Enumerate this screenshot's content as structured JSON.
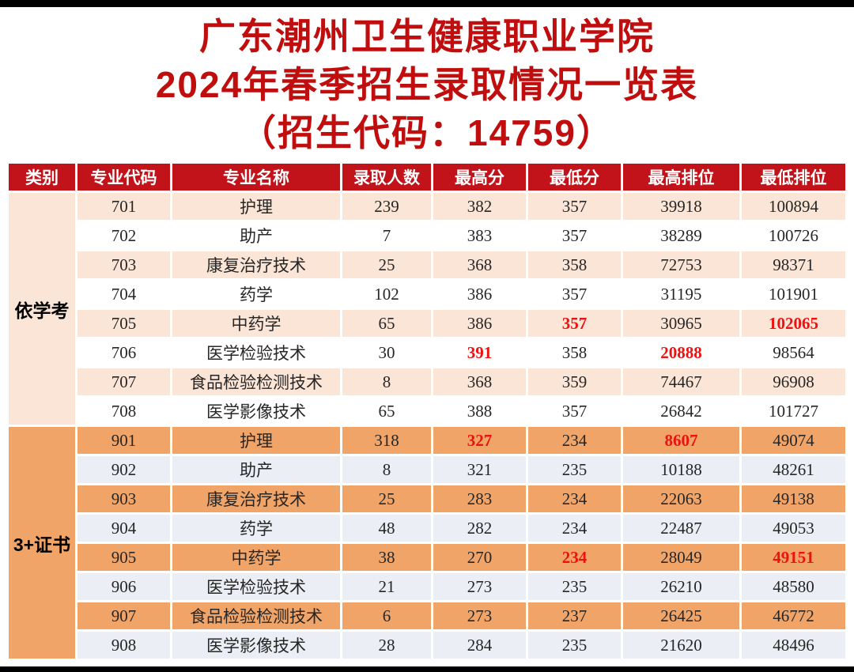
{
  "page": {
    "top_bar_color": "#000000",
    "bottom_bar_color": "#000000",
    "background": "#ffffff"
  },
  "title": {
    "line1": "广东潮州卫生健康职业学院",
    "line2": "2024年春季招生录取情况一览表",
    "line3": "（招生代码：14759）",
    "color": "#c00d0d"
  },
  "table": {
    "header_bg": "#c2121a",
    "highlight_color": "#ee1111",
    "columns": [
      "类别",
      "专业代码",
      "专业名称",
      "录取人数",
      "最高分",
      "最低分",
      "最高排位",
      "最低排位"
    ],
    "groups": [
      {
        "category": "依学考",
        "category_bg": "#fbe5d6",
        "row_colors": [
          "#fbe5d6",
          "#ffffff"
        ],
        "rows": [
          {
            "cells": [
              "701",
              "护理",
              "239",
              "382",
              "357",
              "39918",
              "100894"
            ],
            "red": []
          },
          {
            "cells": [
              "702",
              "助产",
              "7",
              "383",
              "357",
              "38289",
              "100726"
            ],
            "red": []
          },
          {
            "cells": [
              "703",
              "康复治疗技术",
              "25",
              "368",
              "358",
              "72753",
              "98371"
            ],
            "red": []
          },
          {
            "cells": [
              "704",
              "药学",
              "102",
              "386",
              "357",
              "31195",
              "101901"
            ],
            "red": []
          },
          {
            "cells": [
              "705",
              "中药学",
              "65",
              "386",
              "357",
              "30965",
              "102065"
            ],
            "red": [
              4,
              6
            ]
          },
          {
            "cells": [
              "706",
              "医学检验技术",
              "30",
              "391",
              "358",
              "20888",
              "98564"
            ],
            "red": [
              3,
              5
            ]
          },
          {
            "cells": [
              "707",
              "食品检验检测技术",
              "8",
              "368",
              "359",
              "74467",
              "96908"
            ],
            "red": []
          },
          {
            "cells": [
              "708",
              "医学影像技术",
              "65",
              "388",
              "357",
              "26842",
              "101727"
            ],
            "red": []
          }
        ]
      },
      {
        "category": "3+证书",
        "category_bg": "#f0a468",
        "row_colors": [
          "#f0a468",
          "#ebeef5"
        ],
        "rows": [
          {
            "cells": [
              "901",
              "护理",
              "318",
              "327",
              "234",
              "8607",
              "49074"
            ],
            "red": [
              3,
              5
            ]
          },
          {
            "cells": [
              "902",
              "助产",
              "8",
              "321",
              "235",
              "10188",
              "48261"
            ],
            "red": []
          },
          {
            "cells": [
              "903",
              "康复治疗技术",
              "25",
              "283",
              "234",
              "22063",
              "49138"
            ],
            "red": []
          },
          {
            "cells": [
              "904",
              "药学",
              "48",
              "282",
              "234",
              "22487",
              "49053"
            ],
            "red": []
          },
          {
            "cells": [
              "905",
              "中药学",
              "38",
              "270",
              "234",
              "28049",
              "49151"
            ],
            "red": [
              4,
              6
            ]
          },
          {
            "cells": [
              "906",
              "医学检验技术",
              "21",
              "273",
              "235",
              "26210",
              "48580"
            ],
            "red": []
          },
          {
            "cells": [
              "907",
              "食品检验检测技术",
              "6",
              "273",
              "237",
              "26425",
              "46772"
            ],
            "red": []
          },
          {
            "cells": [
              "908",
              "医学影像技术",
              "28",
              "284",
              "235",
              "21620",
              "48496"
            ],
            "red": []
          }
        ]
      }
    ]
  }
}
